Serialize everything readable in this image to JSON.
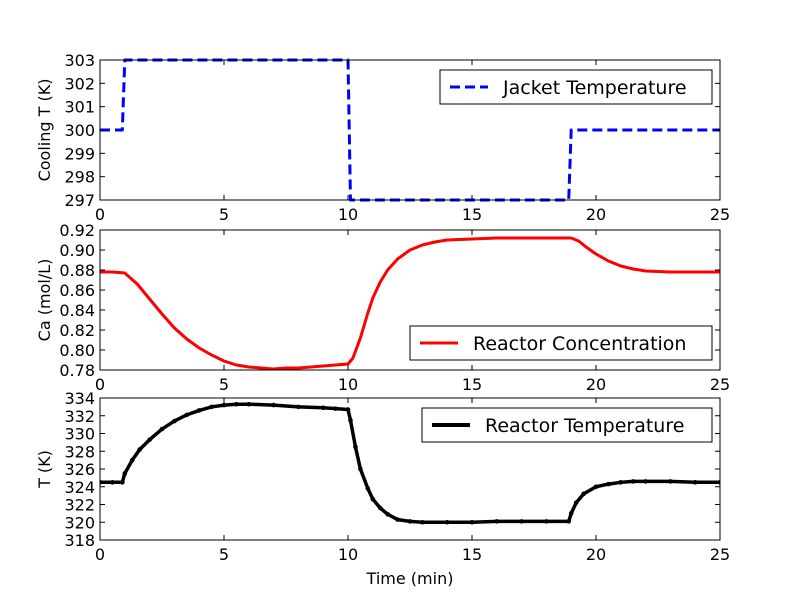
{
  "chart_data": [
    {
      "type": "line",
      "ylabel": "Cooling T (K)",
      "xlabel": "",
      "xlim": [
        0,
        25
      ],
      "ylim": [
        297,
        303
      ],
      "xticks": [
        0,
        5,
        10,
        15,
        20,
        25
      ],
      "yticks": [
        297,
        298,
        299,
        300,
        301,
        302,
        303
      ],
      "xtick_labels": [
        "0",
        "5",
        "10",
        "15",
        "20",
        "25"
      ],
      "ytick_labels": [
        "297",
        "298",
        "299",
        "300",
        "301",
        "302",
        "303"
      ],
      "legend_position": "top-right",
      "series": [
        {
          "name": "Jacket Temperature",
          "color": "#0000ff",
          "style": "dashed",
          "x": [
            0,
            0.9,
            1.0,
            1.0,
            10.0,
            10.0,
            10.1,
            18.9,
            18.9,
            19.0,
            25
          ],
          "y": [
            300,
            300,
            303,
            303,
            303,
            303,
            297,
            297,
            297,
            300,
            300
          ]
        }
      ]
    },
    {
      "type": "line",
      "ylabel": "Ca (mol/L)",
      "xlabel": "",
      "xlim": [
        0,
        25
      ],
      "ylim": [
        0.78,
        0.92
      ],
      "xticks": [
        0,
        5,
        10,
        15,
        20,
        25
      ],
      "yticks": [
        0.78,
        0.8,
        0.82,
        0.84,
        0.86,
        0.88,
        0.9,
        0.92
      ],
      "xtick_labels": [
        "0",
        "5",
        "10",
        "15",
        "20",
        "25"
      ],
      "ytick_labels": [
        "0.78",
        "0.80",
        "0.82",
        "0.84",
        "0.86",
        "0.88",
        "0.90",
        "0.92"
      ],
      "legend_position": "bottom-right",
      "series": [
        {
          "name": "Reactor Concentration",
          "color": "#ff0000",
          "style": "solid",
          "x": [
            0,
            0.5,
            1.0,
            1.5,
            2.0,
            2.5,
            3.0,
            3.5,
            4.0,
            4.5,
            5.0,
            5.5,
            6.0,
            6.5,
            7.0,
            7.5,
            8.0,
            8.5,
            9.0,
            9.5,
            10.0,
            10.2,
            10.5,
            10.8,
            11.0,
            11.3,
            11.6,
            12.0,
            12.5,
            13.0,
            13.5,
            14.0,
            15.0,
            16.0,
            17.0,
            18.0,
            19.0,
            19.3,
            19.6,
            20.0,
            20.5,
            21.0,
            21.5,
            22.0,
            23.0,
            24.0,
            25.0
          ],
          "y": [
            0.878,
            0.878,
            0.877,
            0.866,
            0.851,
            0.836,
            0.822,
            0.811,
            0.802,
            0.795,
            0.789,
            0.785,
            0.783,
            0.782,
            0.781,
            0.782,
            0.782,
            0.783,
            0.784,
            0.785,
            0.786,
            0.792,
            0.812,
            0.837,
            0.852,
            0.868,
            0.88,
            0.891,
            0.9,
            0.905,
            0.908,
            0.91,
            0.911,
            0.912,
            0.912,
            0.912,
            0.912,
            0.909,
            0.903,
            0.896,
            0.889,
            0.884,
            0.881,
            0.879,
            0.878,
            0.878,
            0.878
          ]
        }
      ]
    },
    {
      "type": "line",
      "ylabel": "T (K)",
      "xlabel": "Time (min)",
      "xlim": [
        0,
        25
      ],
      "ylim": [
        318,
        334
      ],
      "xticks": [
        0,
        5,
        10,
        15,
        20,
        25
      ],
      "yticks": [
        318,
        320,
        322,
        324,
        326,
        328,
        330,
        332,
        334
      ],
      "xtick_labels": [
        "0",
        "5",
        "10",
        "15",
        "20",
        "25"
      ],
      "ytick_labels": [
        "318",
        "320",
        "322",
        "324",
        "326",
        "328",
        "330",
        "332",
        "334"
      ],
      "legend_position": "top-right",
      "series": [
        {
          "name": "Reactor Temperature",
          "color": "#000000",
          "style": "solid-dotted",
          "x": [
            0,
            0.5,
            0.9,
            1.0,
            1.3,
            1.6,
            2.0,
            2.5,
            3.0,
            3.5,
            4.0,
            4.5,
            5.0,
            5.5,
            6.0,
            7.0,
            8.0,
            9.0,
            9.5,
            10.0,
            10.1,
            10.3,
            10.5,
            10.8,
            11.0,
            11.3,
            11.6,
            12.0,
            12.5,
            13.0,
            14.0,
            15.0,
            16.0,
            17.0,
            18.0,
            18.9,
            19.0,
            19.2,
            19.5,
            20.0,
            20.5,
            21.0,
            21.5,
            22.0,
            23.0,
            24.0,
            25.0
          ],
          "y": [
            324.5,
            324.5,
            324.5,
            325.5,
            327.0,
            328.2,
            329.3,
            330.5,
            331.4,
            332.1,
            332.6,
            333.0,
            333.2,
            333.3,
            333.3,
            333.2,
            333.0,
            332.9,
            332.8,
            332.7,
            331.5,
            328.5,
            326.0,
            323.8,
            322.6,
            321.6,
            320.9,
            320.3,
            320.1,
            320.0,
            320.0,
            320.0,
            320.1,
            320.1,
            320.1,
            320.1,
            321.0,
            322.2,
            323.2,
            324.0,
            324.3,
            324.5,
            324.6,
            324.6,
            324.6,
            324.5,
            324.5
          ]
        }
      ]
    }
  ]
}
